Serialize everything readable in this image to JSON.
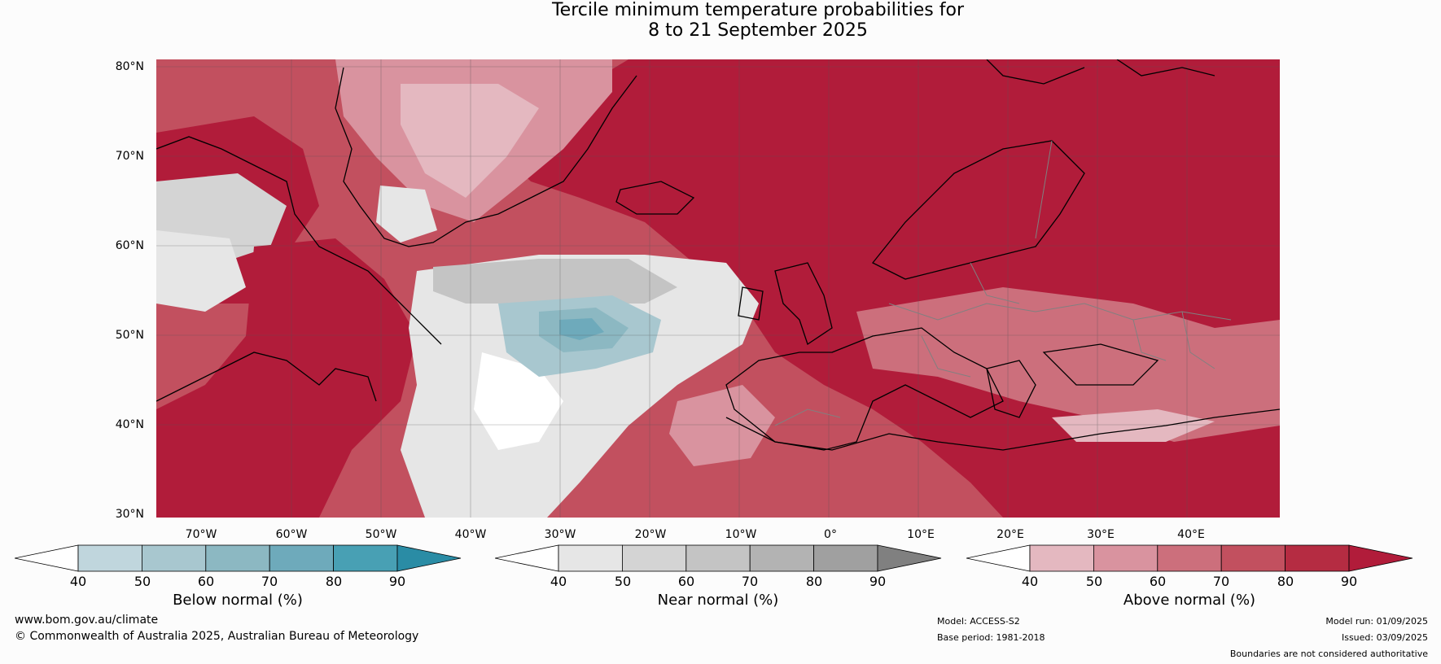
{
  "title": {
    "line1": "Tercile minimum temperature probabilities for",
    "line2": "8 to 21 September 2025"
  },
  "map": {
    "lat_labels": [
      "80°N",
      "70°N",
      "60°N",
      "50°N",
      "40°N",
      "30°N"
    ],
    "lon_labels": [
      "70°W",
      "60°W",
      "50°W",
      "40°W",
      "30°W",
      "20°W",
      "10°W",
      "0°",
      "10°E",
      "20°E",
      "30°E",
      "40°E"
    ]
  },
  "colorbars": [
    {
      "label": "Below normal (%)",
      "ticks": [
        "40",
        "50",
        "60",
        "70",
        "80",
        "90"
      ],
      "colors": [
        "#ffffff",
        "#c0d6dd",
        "#a8c7cf",
        "#8cb8c2",
        "#6eaabb",
        "#48a0b4",
        "#2a8ca5"
      ]
    },
    {
      "label": "Near normal (%)",
      "ticks": [
        "40",
        "50",
        "60",
        "70",
        "80",
        "90"
      ],
      "colors": [
        "#ffffff",
        "#e6e6e6",
        "#d4d4d4",
        "#c4c4c4",
        "#b3b3b3",
        "#a0a0a0",
        "#808080"
      ]
    },
    {
      "label": "Above normal (%)",
      "ticks": [
        "40",
        "50",
        "60",
        "70",
        "80",
        "90"
      ],
      "colors": [
        "#ffffff",
        "#e4b8c0",
        "#d9939f",
        "#cc6f7c",
        "#c2505f",
        "#b52c42",
        "#b11c3a"
      ]
    }
  ],
  "footer": {
    "website": "www.bom.gov.au/climate",
    "copyright": "© Commonwealth of Australia 2025, Australian Bureau of Meteorology",
    "model": "Model: ACCESS-S2",
    "base_period": "Base period: 1981-2018",
    "model_run": "Model run: 01/09/2025",
    "issued": "Issued: 03/09/2025",
    "disclaimer": "Boundaries are not considered authoritative"
  }
}
